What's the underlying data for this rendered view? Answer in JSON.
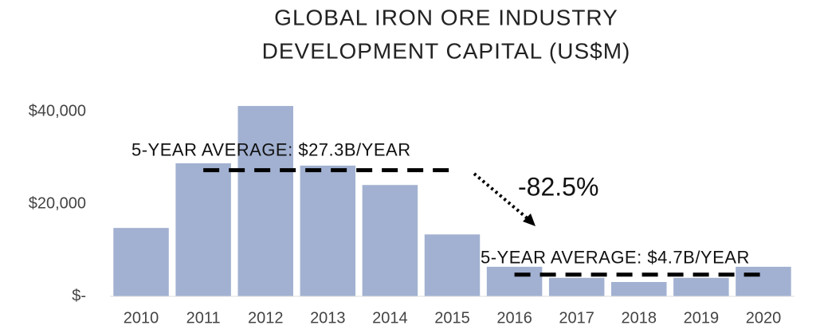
{
  "chart_data": {
    "type": "bar",
    "title": [
      "GLOBAL IRON ORE INDUSTRY",
      "DEVELOPMENT CAPITAL (US$M)"
    ],
    "categories": [
      "2010",
      "2011",
      "2012",
      "2013",
      "2014",
      "2015",
      "2016",
      "2017",
      "2018",
      "2019",
      "2020"
    ],
    "values": [
      14800,
      28800,
      41200,
      28300,
      24100,
      13400,
      6400,
      4000,
      3100,
      4000,
      6400
    ],
    "color": "#a2b1d1",
    "ylim": [
      0,
      42000
    ],
    "yticks": [
      {
        "value": 0,
        "label": "$-"
      },
      {
        "value": 20000,
        "label": "$20,000"
      },
      {
        "value": 40000,
        "label": "$40,000"
      }
    ],
    "grid": false,
    "averages": [
      {
        "label": "5-YEAR AVERAGE: $27.3B/YEAR",
        "value": 27300,
        "start": "2011",
        "end": "2015"
      },
      {
        "label": "5-YEAR AVERAGE: $4.7B/YEAR",
        "value": 4700,
        "start": "2016",
        "end": "2020"
      }
    ],
    "change_label": "-82.5%"
  }
}
